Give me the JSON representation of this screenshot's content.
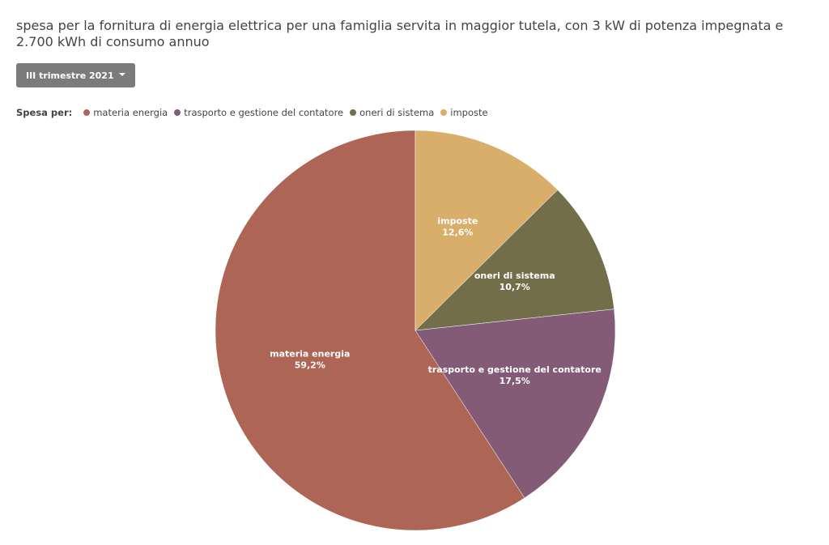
{
  "chart_data": {
    "type": "pie",
    "title": "spesa per la fornitura di energia elettrica per una famiglia servita in maggior tutela, con 3 kW di potenza impegnata e 2.700 kWh di consumo annuo",
    "selector": "III trimestre 2021",
    "legend_title": "Spesa per:",
    "categories": [
      "materia energia",
      "trasporto e gestione del contatore",
      "oneri di sistema",
      "imposte"
    ],
    "values": [
      59.2,
      17.5,
      10.7,
      12.6
    ],
    "value_labels": [
      "59,2%",
      "17,5%",
      "10,7%",
      "12,6%"
    ],
    "colors": [
      "#ad6555",
      "#845b77",
      "#736e4a",
      "#d9ae6a"
    ]
  }
}
